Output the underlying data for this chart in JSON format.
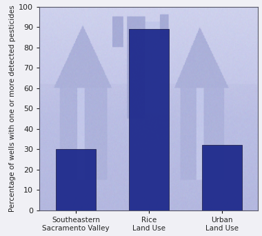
{
  "categories": [
    "Southeastern\nSacramento Valley",
    "Rice\nLand Use",
    "Urban\nLand Use"
  ],
  "values": [
    30,
    89,
    32
  ],
  "bar_color": "#1f2b8c",
  "bar_width": 0.55,
  "bar_edgecolor": "#111133",
  "ylabel": "Percentage of wells with one or more detected pesticides",
  "ylim": [
    0,
    100
  ],
  "yticks": [
    0,
    10,
    20,
    30,
    40,
    50,
    60,
    70,
    80,
    90,
    100
  ],
  "outer_bg_color": "#f0f0f5",
  "plot_bg_tint": [
    0.78,
    0.79,
    0.91
  ],
  "spine_color": "#555566",
  "tick_color": "#222222",
  "label_fontsize": 7.5,
  "ylabel_fontsize": 7.5,
  "ytick_fontsize": 8,
  "bar_alpha": 0.95,
  "photo_alpha": 0.55,
  "tint_color": [
    0.72,
    0.74,
    0.9
  ],
  "tint_alpha": 0.6
}
